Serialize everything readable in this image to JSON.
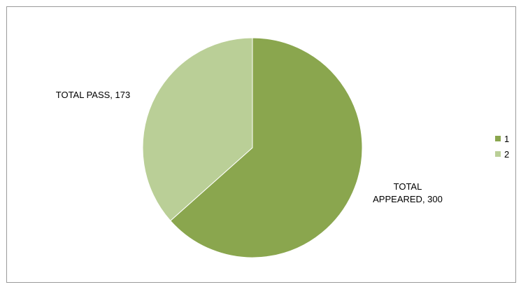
{
  "chart_data": {
    "type": "pie",
    "title": "",
    "categories": [
      "TOTAL APPEARED",
      "TOTAL PASS"
    ],
    "values": [
      300,
      173
    ],
    "colors": [
      "#8aa64e",
      "#bacf97"
    ],
    "data_labels": [
      {
        "lines": [
          "TOTAL",
          "APPEARED, 300"
        ]
      },
      {
        "lines": [
          "TOTAL PASS, 173"
        ]
      }
    ],
    "legend": {
      "position": "right",
      "entries": [
        "1",
        "2"
      ]
    }
  }
}
